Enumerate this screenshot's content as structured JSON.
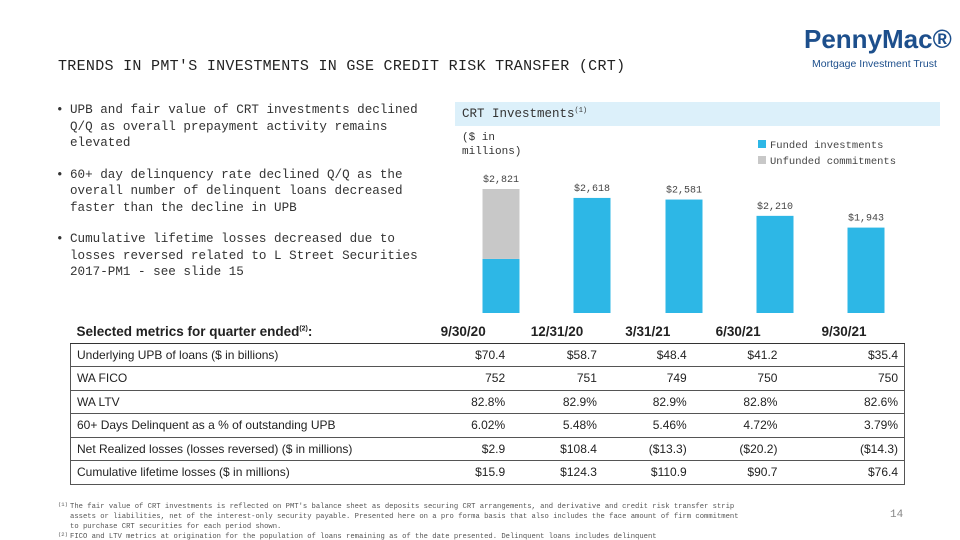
{
  "header": {
    "title": "TRENDS IN PMT'S INVESTMENTS IN GSE CREDIT RISK TRANSFER (CRT)"
  },
  "logo": {
    "name": "PennyMac®",
    "tagline": "Mortgage Investment Trust"
  },
  "bullets": [
    "UPB and fair value of CRT investments declined Q/Q as overall prepayment activity remains elevated",
    "60+ day delinquency rate declined Q/Q as the overall number of delinquent loans decreased faster than the decline in UPB",
    "Cumulative lifetime losses decreased due to losses reversed related to L Street Securities 2017-PM1 - see slide 15"
  ],
  "chart_data": {
    "type": "stacked-bar",
    "title": "CRT Investments",
    "title_note": "(1)",
    "unit_label": "($ in millions)",
    "categories": [
      "9/30/20",
      "12/31/20",
      "3/31/21",
      "6/30/21",
      "9/30/21"
    ],
    "series": [
      {
        "name": "Funded investments",
        "color": "#2db7e6",
        "values": [
          1230,
          2618,
          2581,
          2210,
          1943
        ]
      },
      {
        "name": "Unfunded commitments",
        "color": "#c8c8c8",
        "values": [
          1591,
          0,
          0,
          0,
          0
        ]
      }
    ],
    "totals": [
      2821,
      2618,
      2581,
      2210,
      1943
    ],
    "total_labels": [
      "$2,821",
      "$2,618",
      "$2,581",
      "$2,210",
      "$1,943"
    ],
    "legend": "top-right"
  },
  "table": {
    "header_label": "Selected metrics for quarter ended",
    "header_note": "(2)",
    "header_suffix": ":",
    "rows": [
      [
        "Underlying UPB of loans ($ in billions)",
        "$70.4",
        "$58.7",
        "$48.4",
        "$41.2",
        "$35.4"
      ],
      [
        "WA FICO",
        "752",
        "751",
        "749",
        "750",
        "750"
      ],
      [
        "WA LTV",
        "82.8%",
        "82.9%",
        "82.9%",
        "82.8%",
        "82.6%"
      ],
      [
        "60+ Days Delinquent as a % of outstanding UPB",
        "6.02%",
        "5.48%",
        "5.46%",
        "4.72%",
        "3.79%"
      ],
      [
        "Net Realized losses (losses reversed) ($ in millions)",
        "$2.9",
        "$108.4",
        "($13.3)",
        "($20.2)",
        "($14.3)"
      ],
      [
        "Cumulative lifetime losses ($ in millions)",
        "$15.9",
        "$124.3",
        "$110.9",
        "$90.7",
        "$76.4"
      ]
    ]
  },
  "footnotes": [
    {
      "marker": "(1)",
      "text": "The fair value of CRT investments is reflected on PMT's balance sheet as deposits securing CRT arrangements, and derivative and credit risk transfer strip assets or liabilities, net of the interest-only security payable. Presented here on a pro forma basis that also includes the face amount of firm commitment to purchase CRT securities for each period shown."
    },
    {
      "marker": "(2)",
      "text": "FICO and LTV metrics at origination for the population of loans remaining as of the date presented. Delinquent loans includes delinquent"
    }
  ],
  "page_number": "14"
}
